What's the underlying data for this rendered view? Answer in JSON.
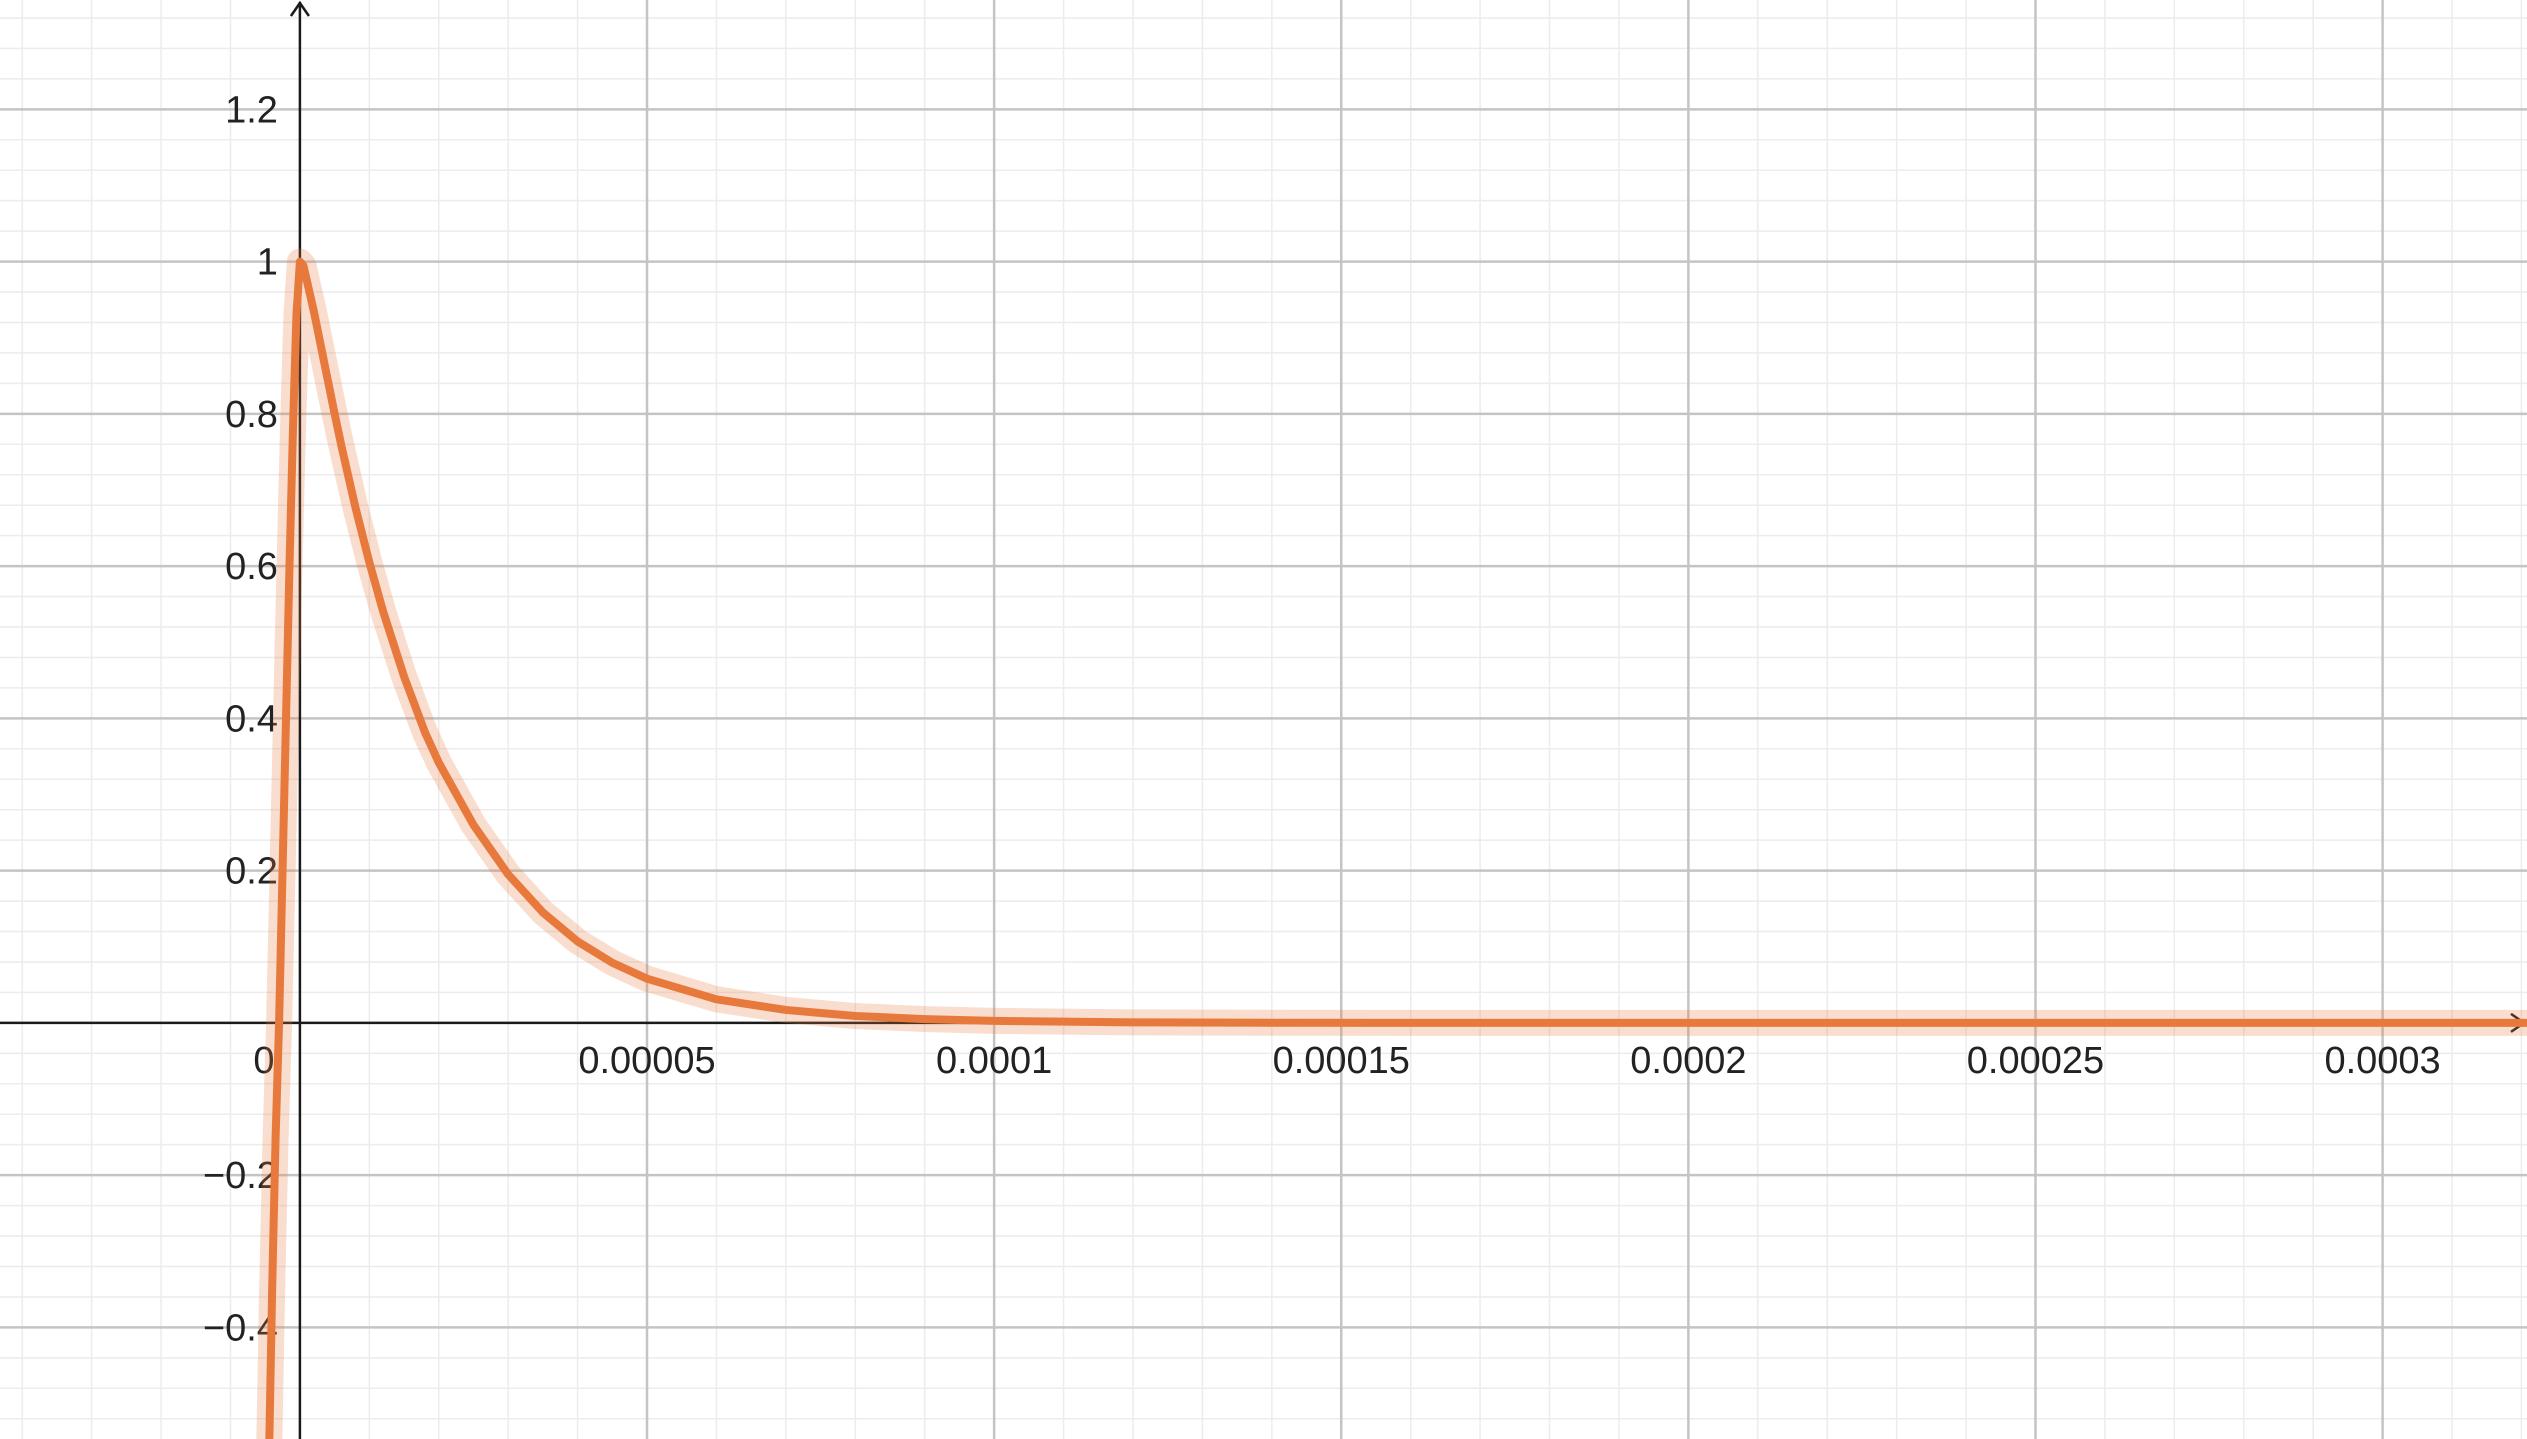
{
  "chart_data": {
    "type": "line",
    "title": "",
    "xlabel": "",
    "ylabel": "",
    "xlim": [
      -4.32e-05,
      0.0003208
    ],
    "ylim": [
      -0.5466,
      1.3436
    ],
    "grid": true,
    "legend": "none",
    "x_ticks": [
      {
        "value": 5e-05,
        "label": "0.00005"
      },
      {
        "value": 0.0001,
        "label": "0.0001"
      },
      {
        "value": 0.00015,
        "label": "0.00015"
      },
      {
        "value": 0.0002,
        "label": "0.0002"
      },
      {
        "value": 0.00025,
        "label": "0.00025"
      },
      {
        "value": 0.0003,
        "label": "0.0003"
      }
    ],
    "y_ticks": [
      {
        "value": 1.2,
        "label": "1.2"
      },
      {
        "value": 1,
        "label": "1"
      },
      {
        "value": 0.8,
        "label": "0.8"
      },
      {
        "value": 0.6,
        "label": "0.6"
      },
      {
        "value": 0.4,
        "label": "0.4"
      },
      {
        "value": 0.2,
        "label": "0.2"
      },
      {
        "value": -0.2,
        "label": "−0.2"
      },
      {
        "value": -0.4,
        "label": "−0.4"
      }
    ],
    "origin_label": "0",
    "series": [
      {
        "color": "#e8793c",
        "points": [
          [
            -4.4e-06,
            -0.5466
          ],
          [
            -4e-06,
            -0.35
          ],
          [
            -3.5e-06,
            -0.15
          ],
          [
            -3e-06,
            0.0
          ],
          [
            -2.5e-06,
            0.2
          ],
          [
            -2e-06,
            0.4
          ],
          [
            -1.5e-06,
            0.6
          ],
          [
            -1e-06,
            0.78
          ],
          [
            -5e-07,
            0.93
          ],
          [
            0.0,
            1.0
          ],
          [
            5e-07,
            0.995
          ],
          [
            1e-06,
            0.975
          ],
          [
            2e-06,
            0.935
          ],
          [
            3e-06,
            0.89
          ],
          [
            4e-06,
            0.845
          ],
          [
            5e-06,
            0.8
          ],
          [
            6e-06,
            0.757
          ],
          [
            8e-06,
            0.677
          ],
          [
            1e-05,
            0.605
          ],
          [
            1.2e-05,
            0.54
          ],
          [
            1.5e-05,
            0.455
          ],
          [
            1.8e-05,
            0.382
          ],
          [
            2e-05,
            0.342
          ],
          [
            2.5e-05,
            0.26
          ],
          [
            3e-05,
            0.195
          ],
          [
            3.5e-05,
            0.145
          ],
          [
            4e-05,
            0.107
          ],
          [
            4.5e-05,
            0.079
          ],
          [
            5e-05,
            0.058
          ],
          [
            6e-05,
            0.031
          ],
          [
            7e-05,
            0.017
          ],
          [
            8e-05,
            0.009
          ],
          [
            9e-05,
            0.005
          ],
          [
            0.0001,
            0.0026
          ],
          [
            0.00012,
            0.0007
          ],
          [
            0.00014,
            0.0002
          ],
          [
            0.00016,
            0.0
          ],
          [
            0.0002,
            0.0
          ],
          [
            0.00025,
            0.0
          ],
          [
            0.0003,
            0.0
          ],
          [
            0.0003208,
            0.0
          ]
        ]
      }
    ]
  }
}
